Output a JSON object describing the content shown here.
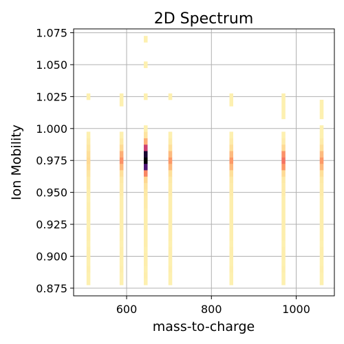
{
  "chart_data": {
    "type": "heatmap",
    "title": "2D Spectrum",
    "xlabel": "mass-to-charge",
    "ylabel": "Ion Mobility",
    "xlim": [
      475,
      1090
    ],
    "ylim": [
      0.869,
      1.078
    ],
    "xticks": [
      600,
      800,
      1000
    ],
    "yticks": [
      0.875,
      0.9,
      0.925,
      0.95,
      0.975,
      1.0,
      1.025,
      1.05,
      1.075
    ],
    "ytick_labels": [
      "0.875",
      "0.900",
      "0.925",
      "0.950",
      "0.975",
      "1.000",
      "1.025",
      "1.050",
      "1.075"
    ],
    "grid": true,
    "colormap": "magma_r",
    "bin_height": 0.005,
    "bin_width": 4.5,
    "columns": [
      {
        "mz": 510,
        "intensity": [
          [
            0.88,
            0.05
          ],
          [
            0.885,
            0.05
          ],
          [
            0.89,
            0.06
          ],
          [
            0.895,
            0.05
          ],
          [
            0.9,
            0.06
          ],
          [
            0.905,
            0.06
          ],
          [
            0.91,
            0.05
          ],
          [
            0.915,
            0.06
          ],
          [
            0.92,
            0.06
          ],
          [
            0.925,
            0.05
          ],
          [
            0.93,
            0.06
          ],
          [
            0.935,
            0.06
          ],
          [
            0.94,
            0.06
          ],
          [
            0.945,
            0.05
          ],
          [
            0.95,
            0.06
          ],
          [
            0.955,
            0.07
          ],
          [
            0.96,
            0.07
          ],
          [
            0.965,
            0.09
          ],
          [
            0.97,
            0.12
          ],
          [
            0.975,
            0.14
          ],
          [
            0.98,
            0.12
          ],
          [
            0.985,
            0.09
          ],
          [
            0.99,
            0.07
          ],
          [
            0.995,
            0.05
          ],
          [
            1.025,
            0.05
          ]
        ]
      },
      {
        "mz": 588,
        "intensity": [
          [
            0.88,
            0.05
          ],
          [
            0.885,
            0.05
          ],
          [
            0.89,
            0.06
          ],
          [
            0.895,
            0.05
          ],
          [
            0.9,
            0.06
          ],
          [
            0.905,
            0.06
          ],
          [
            0.91,
            0.05
          ],
          [
            0.915,
            0.06
          ],
          [
            0.92,
            0.06
          ],
          [
            0.925,
            0.06
          ],
          [
            0.93,
            0.06
          ],
          [
            0.935,
            0.06
          ],
          [
            0.94,
            0.06
          ],
          [
            0.945,
            0.06
          ],
          [
            0.95,
            0.07
          ],
          [
            0.955,
            0.07
          ],
          [
            0.96,
            0.08
          ],
          [
            0.965,
            0.12
          ],
          [
            0.97,
            0.22
          ],
          [
            0.975,
            0.32
          ],
          [
            0.98,
            0.25
          ],
          [
            0.985,
            0.14
          ],
          [
            0.99,
            0.08
          ],
          [
            0.995,
            0.05
          ],
          [
            1.02,
            0.05
          ],
          [
            1.025,
            0.05
          ]
        ]
      },
      {
        "mz": 645,
        "intensity": [
          [
            0.88,
            0.05
          ],
          [
            0.885,
            0.06
          ],
          [
            0.89,
            0.05
          ],
          [
            0.895,
            0.06
          ],
          [
            0.9,
            0.06
          ],
          [
            0.905,
            0.05
          ],
          [
            0.91,
            0.06
          ],
          [
            0.915,
            0.06
          ],
          [
            0.92,
            0.06
          ],
          [
            0.925,
            0.06
          ],
          [
            0.93,
            0.06
          ],
          [
            0.935,
            0.06
          ],
          [
            0.94,
            0.07
          ],
          [
            0.945,
            0.07
          ],
          [
            0.95,
            0.08
          ],
          [
            0.955,
            0.1
          ],
          [
            0.96,
            0.15
          ],
          [
            0.965,
            0.35
          ],
          [
            0.97,
            0.85
          ],
          [
            0.975,
            1.0
          ],
          [
            0.98,
            0.95
          ],
          [
            0.985,
            0.6
          ],
          [
            0.99,
            0.25
          ],
          [
            0.995,
            0.1
          ],
          [
            1.0,
            0.05
          ],
          [
            1.025,
            0.05
          ],
          [
            1.05,
            0.05
          ],
          [
            1.07,
            0.05
          ]
        ]
      },
      {
        "mz": 703,
        "intensity": [
          [
            0.88,
            0.05
          ],
          [
            0.885,
            0.05
          ],
          [
            0.89,
            0.06
          ],
          [
            0.895,
            0.05
          ],
          [
            0.9,
            0.06
          ],
          [
            0.905,
            0.06
          ],
          [
            0.91,
            0.05
          ],
          [
            0.915,
            0.06
          ],
          [
            0.92,
            0.06
          ],
          [
            0.925,
            0.06
          ],
          [
            0.93,
            0.06
          ],
          [
            0.935,
            0.06
          ],
          [
            0.94,
            0.06
          ],
          [
            0.945,
            0.06
          ],
          [
            0.95,
            0.07
          ],
          [
            0.955,
            0.07
          ],
          [
            0.96,
            0.08
          ],
          [
            0.965,
            0.12
          ],
          [
            0.97,
            0.22
          ],
          [
            0.975,
            0.3
          ],
          [
            0.98,
            0.22
          ],
          [
            0.985,
            0.12
          ],
          [
            0.99,
            0.07
          ],
          [
            0.995,
            0.05
          ],
          [
            1.025,
            0.05
          ]
        ]
      },
      {
        "mz": 847,
        "intensity": [
          [
            0.88,
            0.05
          ],
          [
            0.885,
            0.05
          ],
          [
            0.89,
            0.06
          ],
          [
            0.895,
            0.05
          ],
          [
            0.9,
            0.06
          ],
          [
            0.905,
            0.06
          ],
          [
            0.91,
            0.05
          ],
          [
            0.915,
            0.06
          ],
          [
            0.92,
            0.06
          ],
          [
            0.925,
            0.06
          ],
          [
            0.93,
            0.06
          ],
          [
            0.935,
            0.06
          ],
          [
            0.94,
            0.06
          ],
          [
            0.945,
            0.06
          ],
          [
            0.95,
            0.07
          ],
          [
            0.955,
            0.07
          ],
          [
            0.96,
            0.08
          ],
          [
            0.965,
            0.12
          ],
          [
            0.97,
            0.22
          ],
          [
            0.975,
            0.3
          ],
          [
            0.98,
            0.22
          ],
          [
            0.985,
            0.12
          ],
          [
            0.99,
            0.07
          ],
          [
            0.995,
            0.05
          ],
          [
            1.02,
            0.05
          ],
          [
            1.025,
            0.05
          ]
        ]
      },
      {
        "mz": 970,
        "intensity": [
          [
            0.88,
            0.05
          ],
          [
            0.885,
            0.05
          ],
          [
            0.89,
            0.06
          ],
          [
            0.895,
            0.05
          ],
          [
            0.9,
            0.06
          ],
          [
            0.905,
            0.06
          ],
          [
            0.91,
            0.05
          ],
          [
            0.915,
            0.06
          ],
          [
            0.92,
            0.06
          ],
          [
            0.925,
            0.06
          ],
          [
            0.93,
            0.06
          ],
          [
            0.935,
            0.06
          ],
          [
            0.94,
            0.06
          ],
          [
            0.945,
            0.06
          ],
          [
            0.95,
            0.07
          ],
          [
            0.955,
            0.07
          ],
          [
            0.96,
            0.08
          ],
          [
            0.965,
            0.14
          ],
          [
            0.97,
            0.3
          ],
          [
            0.975,
            0.4
          ],
          [
            0.98,
            0.32
          ],
          [
            0.985,
            0.14
          ],
          [
            0.99,
            0.07
          ],
          [
            0.995,
            0.05
          ],
          [
            1.01,
            0.05
          ],
          [
            1.015,
            0.05
          ],
          [
            1.02,
            0.05
          ],
          [
            1.025,
            0.05
          ]
        ]
      },
      {
        "mz": 1060,
        "intensity": [
          [
            0.88,
            0.05
          ],
          [
            0.885,
            0.05
          ],
          [
            0.89,
            0.06
          ],
          [
            0.895,
            0.05
          ],
          [
            0.9,
            0.06
          ],
          [
            0.905,
            0.06
          ],
          [
            0.91,
            0.05
          ],
          [
            0.915,
            0.06
          ],
          [
            0.92,
            0.06
          ],
          [
            0.925,
            0.06
          ],
          [
            0.93,
            0.06
          ],
          [
            0.935,
            0.06
          ],
          [
            0.94,
            0.06
          ],
          [
            0.945,
            0.06
          ],
          [
            0.95,
            0.07
          ],
          [
            0.955,
            0.07
          ],
          [
            0.96,
            0.08
          ],
          [
            0.965,
            0.12
          ],
          [
            0.97,
            0.22
          ],
          [
            0.975,
            0.3
          ],
          [
            0.98,
            0.22
          ],
          [
            0.985,
            0.12
          ],
          [
            0.99,
            0.07
          ],
          [
            0.995,
            0.05
          ],
          [
            1.0,
            0.05
          ],
          [
            1.01,
            0.05
          ],
          [
            1.015,
            0.05
          ],
          [
            1.02,
            0.05
          ]
        ]
      }
    ]
  }
}
